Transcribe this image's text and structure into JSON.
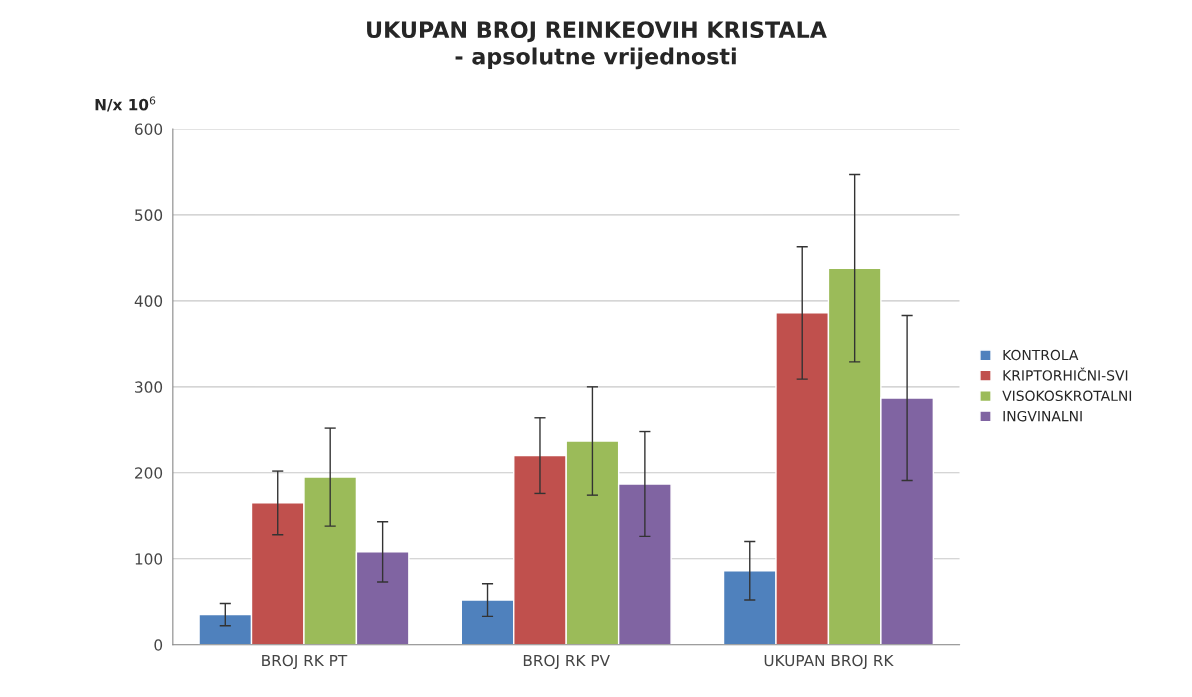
{
  "chart_data": {
    "type": "bar",
    "title": "UKUPAN BROJ REINKEOVIH KRISTALA\n- apsolutne vrijednosti",
    "ylabel": "N/x 10$^{6}$",
    "categories": [
      "BROJ RK PT",
      "BROJ RK PV",
      "UKUPAN BROJ RK"
    ],
    "series": [
      {
        "name": "KONTROLA",
        "color": "#4f81bd",
        "values": [
          35,
          52,
          86
        ],
        "errors": [
          13,
          19,
          34
        ]
      },
      {
        "name": "KRIPTORHIČNI-SVI",
        "color": "#c0504d",
        "values": [
          165,
          220,
          386
        ],
        "errors": [
          37,
          44,
          77
        ]
      },
      {
        "name": "VISOKOSKROTALNI",
        "color": "#9bbb59",
        "values": [
          195,
          237,
          438
        ],
        "errors": [
          57,
          63,
          109
        ]
      },
      {
        "name": "INGVINALNI",
        "color": "#8064a2",
        "values": [
          108,
          187,
          287
        ],
        "errors": [
          35,
          61,
          96
        ]
      }
    ],
    "ylim": [
      0,
      600
    ],
    "yticks": [
      0,
      100,
      200,
      300,
      400,
      500,
      600
    ],
    "grid": "y",
    "legend": "right"
  }
}
